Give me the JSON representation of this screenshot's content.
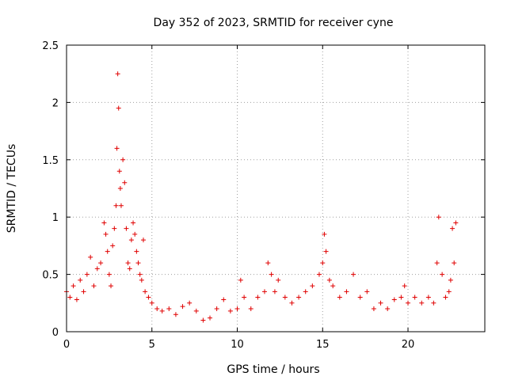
{
  "chart_data": {
    "type": "scatter",
    "title": "Day 352 of 2023, SRMTID for receiver cyne",
    "xlabel": "GPS time / hours",
    "ylabel": "SRMTID / TECUs",
    "xlim": [
      0,
      24.5
    ],
    "ylim": [
      0,
      2.5
    ],
    "grid": true,
    "marker": "plus",
    "color": "#e00000",
    "xticks": [
      0,
      5,
      10,
      15,
      20
    ],
    "xtick_labels": [
      "0",
      "5",
      "10",
      "15",
      "20"
    ],
    "yticks": [
      0,
      0.5,
      1,
      1.5,
      2,
      2.5
    ],
    "ytick_labels": [
      "0",
      "0.5",
      "1",
      "1.5",
      "2",
      "2.5"
    ],
    "series": [
      {
        "name": "SRMTID",
        "x": [
          0.0,
          0.2,
          0.4,
          0.6,
          0.8,
          1.0,
          1.2,
          1.4,
          1.6,
          1.8,
          2.0,
          2.2,
          2.3,
          2.4,
          2.5,
          2.6,
          2.7,
          2.8,
          2.9,
          2.95,
          3.0,
          3.05,
          3.1,
          3.15,
          3.2,
          3.3,
          3.4,
          3.5,
          3.6,
          3.7,
          3.8,
          3.9,
          4.0,
          4.1,
          4.2,
          4.3,
          4.4,
          4.5,
          4.6,
          4.8,
          5.0,
          5.3,
          5.6,
          6.0,
          6.4,
          6.8,
          7.2,
          7.6,
          8.0,
          8.4,
          8.8,
          9.2,
          9.6,
          10.0,
          10.2,
          10.4,
          10.8,
          11.2,
          11.6,
          11.8,
          12.0,
          12.2,
          12.4,
          12.8,
          13.2,
          13.6,
          14.0,
          14.4,
          14.8,
          15.0,
          15.1,
          15.2,
          15.4,
          15.6,
          16.0,
          16.4,
          16.8,
          17.2,
          17.6,
          18.0,
          18.4,
          18.8,
          19.2,
          19.6,
          19.8,
          20.0,
          20.4,
          20.8,
          21.2,
          21.5,
          21.7,
          21.8,
          22.0,
          22.2,
          22.4,
          22.5,
          22.6,
          22.7,
          22.8
        ],
        "y": [
          0.35,
          0.3,
          0.4,
          0.28,
          0.45,
          0.35,
          0.5,
          0.65,
          0.4,
          0.55,
          0.6,
          0.95,
          0.85,
          0.7,
          0.5,
          0.4,
          0.75,
          0.9,
          1.1,
          1.6,
          2.25,
          1.95,
          1.4,
          1.25,
          1.1,
          1.5,
          1.3,
          0.9,
          0.6,
          0.55,
          0.8,
          0.95,
          0.85,
          0.7,
          0.6,
          0.5,
          0.45,
          0.8,
          0.35,
          0.3,
          0.25,
          0.2,
          0.18,
          0.2,
          0.15,
          0.22,
          0.25,
          0.18,
          0.1,
          0.12,
          0.2,
          0.28,
          0.18,
          0.2,
          0.45,
          0.3,
          0.2,
          0.3,
          0.35,
          0.6,
          0.5,
          0.35,
          0.45,
          0.3,
          0.25,
          0.3,
          0.35,
          0.4,
          0.5,
          0.6,
          0.85,
          0.7,
          0.45,
          0.4,
          0.3,
          0.35,
          0.5,
          0.3,
          0.35,
          0.2,
          0.25,
          0.2,
          0.28,
          0.3,
          0.4,
          0.25,
          0.3,
          0.25,
          0.3,
          0.25,
          0.6,
          1.0,
          0.5,
          0.3,
          0.35,
          0.45,
          0.9,
          0.6,
          0.95
        ]
      }
    ]
  }
}
